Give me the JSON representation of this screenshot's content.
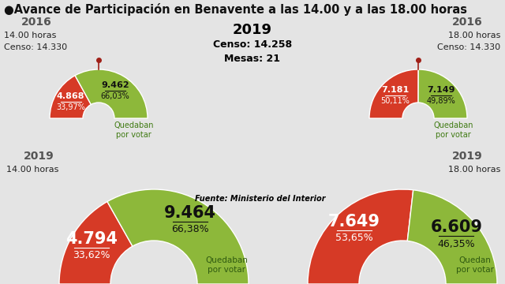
{
  "header": {
    "title": "●Avance de Participación en Benavente a las 14.00 y a las 18.00 horas",
    "year": "2019",
    "census": "Censo: 14.258",
    "tables": "Mesas: 21"
  },
  "source": "Fuente: Ministerio del Interior",
  "chart_data": [
    {
      "type": "pie",
      "title": "2016",
      "subtitle": "14.00 horas",
      "note": "Censo: 14.330",
      "categories": [
        null,
        "Quedaban\npor votar"
      ],
      "values": [
        4868,
        9462
      ],
      "value_labels": [
        "4.868",
        "9.462"
      ],
      "percent_labels": [
        "33,97%",
        "66,03%"
      ],
      "colors": [
        "#d63a26",
        "#8db83a"
      ]
    },
    {
      "type": "pie",
      "title": "2016",
      "subtitle": "18.00 horas",
      "note": "Censo: 14.330",
      "categories": [
        null,
        "Quedaban\npor votar"
      ],
      "values": [
        7181,
        7149
      ],
      "value_labels": [
        "7.181",
        "7.149"
      ],
      "percent_labels": [
        "50,11%",
        "49,89%"
      ],
      "colors": [
        "#d63a26",
        "#8db83a"
      ]
    },
    {
      "type": "pie",
      "title": "2019",
      "subtitle": "14.00 horas",
      "categories": [
        null,
        "Quedaban\npor votar"
      ],
      "values": [
        4794,
        9464
      ],
      "value_labels": [
        "4.794",
        "9.464"
      ],
      "percent_labels": [
        "33,62%",
        "66,38%"
      ],
      "colors": [
        "#d63a26",
        "#8db83a"
      ]
    },
    {
      "type": "pie",
      "title": "2019",
      "subtitle": "18.00 horas",
      "categories": [
        null,
        "Quedan\npor votar"
      ],
      "values": [
        7649,
        6609
      ],
      "value_labels": [
        "7.649",
        "6.609"
      ],
      "percent_labels": [
        "53,65%",
        "46,35%"
      ],
      "colors": [
        "#d63a26",
        "#8db83a"
      ]
    }
  ]
}
